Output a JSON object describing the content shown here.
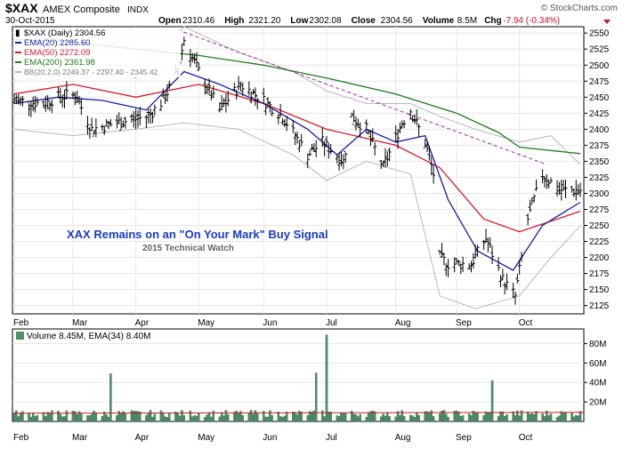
{
  "header": {
    "symbol": "$XAX",
    "name": "AMEX Composite",
    "exchange": "INDX",
    "date": "30-Oct-2015",
    "brand": "© StockCharts.com",
    "quote": [
      {
        "label": "Open",
        "value": "2310.46"
      },
      {
        "label": "High",
        "value": "2321.20"
      },
      {
        "label": "Low",
        "value": "2302.08"
      },
      {
        "label": "Close",
        "value": "2304.56"
      },
      {
        "label": "Volume",
        "value": "8.5M"
      },
      {
        "label": "Chg",
        "value": "-7.94 (-0.34%)"
      }
    ]
  },
  "annotation": {
    "title": "XAX Remains on an \"On Your Mark\" Buy Signal",
    "subtitle": "2015 Technical Watch"
  },
  "colors": {
    "price": "#000000",
    "ema20": "#1a1aa8",
    "ema50": "#d21a2a",
    "ema200": "#1d7a1d",
    "bb": "#b8b8b8",
    "trendline": "#9a2aa0",
    "volume": "#4f8f6a",
    "volEma": "#c0201a",
    "annotation": "#1a3ac8"
  },
  "chart_data": [
    {
      "type": "line",
      "panel": "price",
      "title": "$XAX (Daily) 2304.56",
      "legend": [
        {
          "label": "$XAX (Daily) 2304.56",
          "key": "price"
        },
        {
          "label": "EMA(20) 2285.60",
          "key": "ema20"
        },
        {
          "label": "EMA(50) 2272.09",
          "key": "ema50"
        },
        {
          "label": "EMA(200) 2361.98",
          "key": "ema200"
        },
        {
          "label": "BB(20,2.0) 2249.37 - 2297.40 - 2345.42",
          "key": "bb"
        }
      ],
      "x_months": [
        "Feb",
        "Mar",
        "Apr",
        "May",
        "Jun",
        "Jul",
        "Aug",
        "Sep",
        "Oct"
      ],
      "x_month_starts": [
        "2015-02-02",
        "2015-03-02",
        "2015-04-01",
        "2015-05-01",
        "2015-06-01",
        "2015-07-01",
        "2015-08-03",
        "2015-09-01",
        "2015-10-01"
      ],
      "y_ticks": [
        2125,
        2150,
        2175,
        2200,
        2225,
        2250,
        2275,
        2300,
        2325,
        2350,
        2375,
        2400,
        2425,
        2450,
        2475,
        2500,
        2525,
        2550
      ],
      "ylim": [
        2112,
        2560
      ],
      "xlim": [
        "2015-02-02",
        "2015-10-30"
      ],
      "grid": true,
      "legend_position": "top-left",
      "series": [
        {
          "key": "price",
          "name": "$XAX (Daily)",
          "x": [
            "2015-02-02",
            "2015-02-16",
            "2015-02-23",
            "2015-03-03",
            "2015-03-11",
            "2015-03-23",
            "2015-04-07",
            "2015-04-14",
            "2015-04-21",
            "2015-04-24",
            "2015-05-01",
            "2015-05-11",
            "2015-05-21",
            "2015-06-01",
            "2015-06-10",
            "2015-06-22",
            "2015-06-29",
            "2015-07-09",
            "2015-07-13",
            "2015-07-20",
            "2015-07-28",
            "2015-08-06",
            "2015-08-10",
            "2015-08-17",
            "2015-08-21",
            "2015-08-24",
            "2015-08-28",
            "2015-09-08",
            "2015-09-15",
            "2015-09-23",
            "2015-09-29",
            "2015-10-05",
            "2015-10-12",
            "2015-10-20",
            "2015-10-30"
          ],
          "y": [
            2445,
            2440,
            2450,
            2455,
            2400,
            2410,
            2420,
            2445,
            2490,
            2540,
            2490,
            2430,
            2470,
            2445,
            2420,
            2360,
            2380,
            2350,
            2420,
            2400,
            2340,
            2410,
            2430,
            2380,
            2330,
            2200,
            2190,
            2190,
            2230,
            2165,
            2140,
            2260,
            2330,
            2305,
            2305
          ]
        },
        {
          "key": "ema20",
          "name": "EMA(20)",
          "x": [
            "2015-02-02",
            "2015-02-23",
            "2015-03-16",
            "2015-04-06",
            "2015-04-24",
            "2015-05-11",
            "2015-06-01",
            "2015-06-22",
            "2015-07-06",
            "2015-07-20",
            "2015-08-03",
            "2015-08-17",
            "2015-08-28",
            "2015-09-11",
            "2015-09-28",
            "2015-10-12",
            "2015-10-30"
          ],
          "y": [
            2440,
            2450,
            2445,
            2430,
            2490,
            2470,
            2440,
            2400,
            2360,
            2400,
            2380,
            2390,
            2290,
            2210,
            2180,
            2250,
            2286
          ]
        },
        {
          "key": "ema50",
          "name": "EMA(50)",
          "x": [
            "2015-02-02",
            "2015-03-02",
            "2015-04-01",
            "2015-05-01",
            "2015-06-01",
            "2015-07-01",
            "2015-08-03",
            "2015-08-24",
            "2015-09-14",
            "2015-10-01",
            "2015-10-30"
          ],
          "y": [
            2455,
            2470,
            2450,
            2470,
            2440,
            2400,
            2375,
            2340,
            2260,
            2240,
            2272
          ]
        },
        {
          "key": "ema200",
          "name": "EMA(200)",
          "x": [
            "2015-02-02",
            "2015-03-02",
            "2015-04-01",
            "2015-05-01",
            "2015-06-01",
            "2015-07-01",
            "2015-08-03",
            "2015-09-01",
            "2015-09-21",
            "2015-10-01",
            "2015-10-30"
          ],
          "y": [
            2540,
            2536,
            2525,
            2515,
            2500,
            2480,
            2455,
            2425,
            2395,
            2372,
            2362
          ]
        },
        {
          "key": "bb_upper",
          "name": "BB upper",
          "x": [
            "2015-02-02",
            "2015-03-02",
            "2015-04-01",
            "2015-04-24",
            "2015-05-20",
            "2015-06-15",
            "2015-07-01",
            "2015-07-20",
            "2015-08-10",
            "2015-08-24",
            "2015-09-10",
            "2015-10-01",
            "2015-10-16",
            "2015-10-30"
          ],
          "y": [
            2490,
            2510,
            2480,
            2560,
            2520,
            2490,
            2460,
            2440,
            2440,
            2420,
            2400,
            2380,
            2390,
            2345
          ]
        },
        {
          "key": "bb_lower",
          "name": "BB lower",
          "x": [
            "2015-02-02",
            "2015-03-02",
            "2015-04-01",
            "2015-04-24",
            "2015-05-20",
            "2015-06-15",
            "2015-07-01",
            "2015-07-20",
            "2015-08-10",
            "2015-08-24",
            "2015-09-10",
            "2015-10-01",
            "2015-10-16",
            "2015-10-30"
          ],
          "y": [
            2400,
            2390,
            2400,
            2410,
            2400,
            2360,
            2320,
            2350,
            2330,
            2140,
            2120,
            2140,
            2200,
            2249
          ]
        },
        {
          "key": "trendline",
          "name": "",
          "x": [
            "2015-04-21",
            "2015-10-14"
          ],
          "y": [
            2555,
            2345
          ]
        }
      ]
    },
    {
      "type": "bar",
      "panel": "volume",
      "title": "Volume 8.45M, EMA(34) 8.40M",
      "legend": [
        {
          "label": "Volume 8.45M, EMA(34) 8.40M",
          "key": "volume"
        }
      ],
      "y_ticks": [
        20,
        40,
        60,
        80
      ],
      "y_tick_labels": [
        "20M",
        "40M",
        "60M",
        "80M"
      ],
      "ylim": [
        0,
        95
      ],
      "x_months": [
        "Feb",
        "Mar",
        "Apr",
        "May",
        "Jun",
        "Jul",
        "Aug",
        "Sep",
        "Oct"
      ],
      "baseline": 8,
      "spikes": [
        {
          "x": "2015-03-20",
          "value": 49
        },
        {
          "x": "2015-06-26",
          "value": 50
        },
        {
          "x": "2015-07-01",
          "value": 89
        },
        {
          "x": "2015-09-18",
          "value": 42
        }
      ],
      "ema": 8.4
    }
  ]
}
